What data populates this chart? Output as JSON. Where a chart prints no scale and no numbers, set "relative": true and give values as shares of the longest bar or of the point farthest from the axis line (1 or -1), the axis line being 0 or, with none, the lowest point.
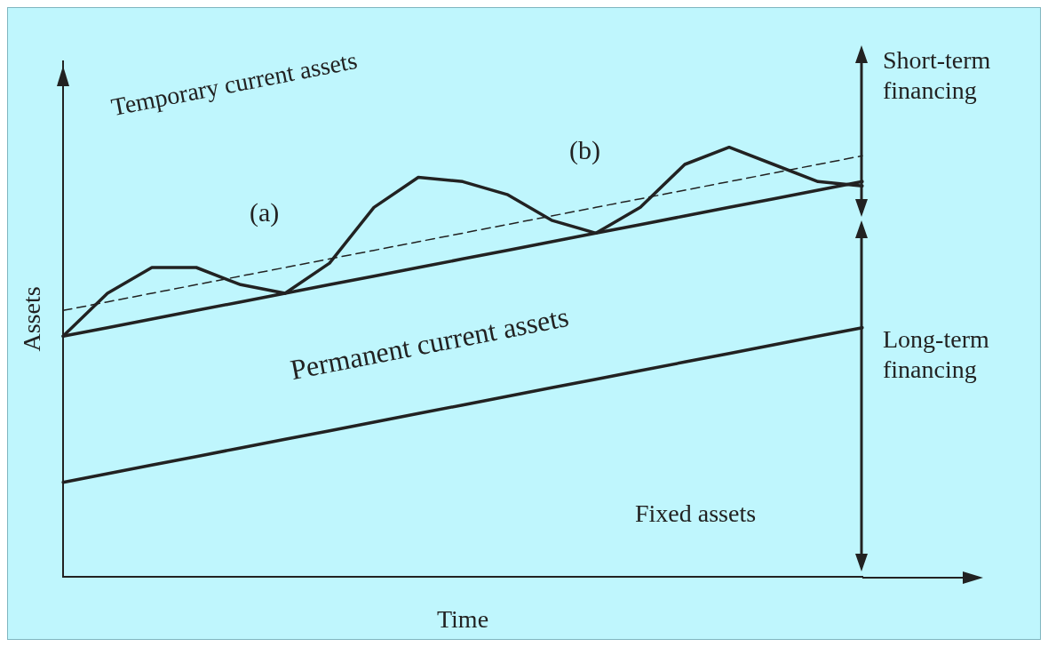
{
  "chart_data": {
    "type": "line",
    "relative": true,
    "xlabel": "Time",
    "ylabel": "Assets",
    "categories": [
      null,
      null,
      null,
      null,
      null,
      null,
      null,
      null,
      null,
      null,
      null,
      null,
      null,
      null,
      null,
      null,
      null,
      null,
      null
    ],
    "grid": false,
    "legend": false,
    "marker": "none",
    "series": [
      {
        "color": "#222222",
        "values": [
          0.56,
          0.66,
          0.72,
          0.72,
          0.68,
          0.66,
          0.73,
          0.86,
          0.93,
          0.92,
          0.89,
          0.83,
          0.8,
          0.86,
          0.96,
          1.0,
          0.96,
          0.92,
          0.91
        ]
      },
      {
        "color": "#222222",
        "values": [
          0.56,
          0.58,
          0.6,
          0.62,
          0.64,
          0.66,
          0.68,
          0.7,
          0.72,
          0.74,
          0.76,
          0.78,
          0.8,
          0.82,
          0.84,
          0.86,
          0.88,
          0.9,
          0.92
        ]
      },
      {
        "color": "#222222",
        "values": [
          0.62,
          0.64,
          0.66,
          0.68,
          0.7,
          0.72,
          0.74,
          0.76,
          0.78,
          0.8,
          0.82,
          0.84,
          0.86,
          0.88,
          0.9,
          0.92,
          0.94,
          0.96,
          0.98
        ],
        "line_style": "dashed"
      },
      {
        "color": "#222222",
        "values": [
          0.22,
          0.24,
          0.26,
          0.28,
          0.3,
          0.32,
          0.34,
          0.36,
          0.38,
          0.4,
          0.42,
          0.44,
          0.46,
          0.48,
          0.5,
          0.52,
          0.54,
          0.56,
          0.58
        ]
      }
    ],
    "annotations": [
      "Temporary current assets",
      "(a)",
      "(b)",
      "Permanent current assets",
      "Fixed assets",
      "Short-term financing",
      "Long-term financing"
    ]
  }
}
